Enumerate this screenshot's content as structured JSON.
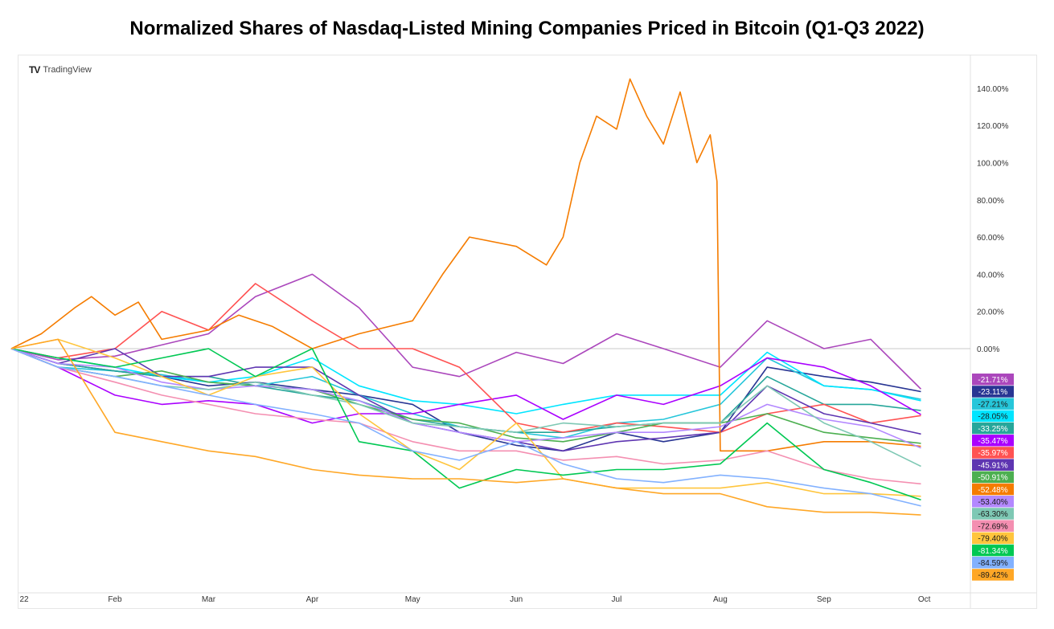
{
  "title": "Normalized Shares of Nasdaq-Listed Mining Companies Priced in Bitcoin (Q1-Q3 2022)",
  "watermark": "TradingView",
  "chart_data": {
    "type": "line",
    "title": "Normalized Shares of Nasdaq-Listed Mining Companies Priced in Bitcoin (Q1-Q3 2022)",
    "xlabel": "",
    "ylabel": "",
    "xlim": [
      "2022-01-01",
      "2022-10-20"
    ],
    "ylim": [
      -130,
      160
    ],
    "y_unit": "%",
    "y_axis_side": "right",
    "y_ticks": [
      "140.00%",
      "120.00%",
      "100.00%",
      "80.00%",
      "60.00%",
      "40.00%",
      "20.00%",
      "0.00%"
    ],
    "y_tick_values": [
      140,
      120,
      100,
      80,
      60,
      40,
      20,
      0
    ],
    "x_ticks": [
      {
        "label": "22",
        "date": "2022-01-01"
      },
      {
        "label": "Feb",
        "date": "2022-02-01"
      },
      {
        "label": "Mar",
        "date": "2022-03-01"
      },
      {
        "label": "Apr",
        "date": "2022-04-01"
      },
      {
        "label": "May",
        "date": "2022-05-01"
      },
      {
        "label": "Jun",
        "date": "2022-06-01"
      },
      {
        "label": "Jul",
        "date": "2022-07-01"
      },
      {
        "label": "Aug",
        "date": "2022-08-01"
      },
      {
        "label": "Sep",
        "date": "2022-09-01"
      },
      {
        "label": "Oct",
        "date": "2022-10-01"
      }
    ],
    "grid": false,
    "zero_line": true,
    "dates": [
      "2022-01-01",
      "2022-01-15",
      "2022-02-01",
      "2022-02-15",
      "2022-03-01",
      "2022-03-15",
      "2022-04-01",
      "2022-04-15",
      "2022-05-01",
      "2022-05-15",
      "2022-06-01",
      "2022-06-15",
      "2022-07-01",
      "2022-07-15",
      "2022-08-01",
      "2022-08-15",
      "2022-09-01",
      "2022-09-15",
      "2022-09-30"
    ],
    "series": [
      {
        "color": "#ab47bc",
        "end_label": "-21.71%",
        "values": [
          0,
          -6,
          -4,
          2,
          8,
          28,
          40,
          22,
          -10,
          -15,
          -2,
          -8,
          8,
          0,
          -10,
          15,
          0,
          5,
          -21.71
        ]
      },
      {
        "color": "#283593",
        "end_label": "-23.11%",
        "values": [
          0,
          -8,
          -12,
          -15,
          -20,
          -18,
          -22,
          -25,
          -30,
          -45,
          -52,
          -55,
          -45,
          -50,
          -45,
          -10,
          -15,
          -18,
          -23.11
        ]
      },
      {
        "color": "#26c6da",
        "end_label": "-27.21%",
        "values": [
          0,
          -10,
          -12,
          -14,
          -18,
          -20,
          -15,
          -25,
          -35,
          -42,
          -45,
          -48,
          -40,
          -38,
          -30,
          -5,
          -20,
          -22,
          -27.21
        ]
      },
      {
        "color": "#00e5ff",
        "end_label": "-28.05%",
        "values": [
          0,
          -5,
          -10,
          -15,
          -18,
          -15,
          -5,
          -20,
          -28,
          -30,
          -35,
          -30,
          -25,
          -25,
          -25,
          -2,
          -20,
          -22,
          -28.05
        ]
      },
      {
        "color": "#26a69a",
        "end_label": "-33.25%",
        "values": [
          0,
          -8,
          -12,
          -15,
          -15,
          -20,
          -25,
          -28,
          -38,
          -42,
          -45,
          -45,
          -42,
          -40,
          -40,
          -15,
          -30,
          -30,
          -33.25
        ]
      },
      {
        "color": "#aa00ff",
        "end_label": "-35.47%",
        "values": [
          0,
          -10,
          -25,
          -30,
          -28,
          -30,
          -40,
          -35,
          -35,
          -30,
          -25,
          -38,
          -25,
          -30,
          -20,
          -5,
          -10,
          -20,
          -35.47
        ]
      },
      {
        "color": "#ff5252",
        "end_label": "-35.97%",
        "values": [
          0,
          -5,
          0,
          20,
          10,
          35,
          15,
          0,
          0,
          -10,
          -40,
          -45,
          -40,
          -42,
          -45,
          -35,
          -30,
          -40,
          -35.97
        ]
      },
      {
        "color": "#5e35b1",
        "end_label": "-45.91%",
        "values": [
          0,
          -8,
          0,
          -15,
          -15,
          -10,
          -10,
          -25,
          -40,
          -45,
          -50,
          -55,
          -50,
          -48,
          -45,
          -20,
          -35,
          -40,
          -45.91
        ]
      },
      {
        "color": "#4caf50",
        "end_label": "-50.91%",
        "values": [
          0,
          -10,
          -15,
          -12,
          -18,
          -20,
          -22,
          -30,
          -38,
          -40,
          -48,
          -50,
          -45,
          -40,
          -40,
          -35,
          -45,
          -48,
          -50.91
        ]
      },
      {
        "color": "#f57c00",
        "end_label": "-52.48%",
        "points": [
          [
            "2022-01-01",
            0
          ],
          [
            "2022-01-10",
            8
          ],
          [
            "2022-01-20",
            22
          ],
          [
            "2022-01-25",
            28
          ],
          [
            "2022-02-01",
            18
          ],
          [
            "2022-02-08",
            25
          ],
          [
            "2022-02-15",
            5
          ],
          [
            "2022-03-01",
            10
          ],
          [
            "2022-03-10",
            18
          ],
          [
            "2022-03-20",
            12
          ],
          [
            "2022-04-01",
            0
          ],
          [
            "2022-04-15",
            8
          ],
          [
            "2022-05-01",
            15
          ],
          [
            "2022-05-10",
            40
          ],
          [
            "2022-05-18",
            60
          ],
          [
            "2022-06-01",
            55
          ],
          [
            "2022-06-10",
            45
          ],
          [
            "2022-06-15",
            60
          ],
          [
            "2022-06-20",
            100
          ],
          [
            "2022-06-25",
            125
          ],
          [
            "2022-07-01",
            118
          ],
          [
            "2022-07-05",
            145
          ],
          [
            "2022-07-10",
            125
          ],
          [
            "2022-07-15",
            110
          ],
          [
            "2022-07-20",
            138
          ],
          [
            "2022-07-25",
            100
          ],
          [
            "2022-07-29",
            115
          ],
          [
            "2022-07-31",
            90
          ],
          [
            "2022-08-01",
            -55
          ],
          [
            "2022-08-15",
            -55
          ],
          [
            "2022-09-01",
            -50
          ],
          [
            "2022-09-15",
            -50
          ],
          [
            "2022-09-30",
            -52.48
          ]
        ]
      },
      {
        "color": "#b388ff",
        "end_label": "-53.40%",
        "values": [
          0,
          -8,
          -10,
          -18,
          -22,
          -20,
          -22,
          -28,
          -40,
          -45,
          -50,
          -48,
          -45,
          -45,
          -42,
          -30,
          -38,
          -42,
          -53.4
        ]
      },
      {
        "color": "#7ec8b4",
        "end_label": "-63.30%",
        "values": [
          0,
          -10,
          -15,
          -20,
          -22,
          -18,
          -25,
          -30,
          -40,
          -42,
          -45,
          -40,
          -42,
          -40,
          -40,
          -20,
          -40,
          -50,
          -63.3
        ]
      },
      {
        "color": "#f48fb1",
        "end_label": "-72.69%",
        "values": [
          0,
          -10,
          -18,
          -25,
          -30,
          -35,
          -38,
          -40,
          -50,
          -55,
          -55,
          -60,
          -58,
          -62,
          -60,
          -55,
          -65,
          -70,
          -72.69
        ]
      },
      {
        "color": "#ffc53d",
        "end_label": "-79.40%",
        "values": [
          0,
          5,
          -5,
          -15,
          -25,
          -15,
          -10,
          -35,
          -55,
          -65,
          -40,
          -70,
          -75,
          -75,
          -75,
          -72,
          -78,
          -78,
          -79.4
        ]
      },
      {
        "color": "#00c853",
        "end_label": "-81.34%",
        "values": [
          0,
          -5,
          -10,
          -5,
          0,
          -15,
          0,
          -50,
          -55,
          -75,
          -65,
          -68,
          -65,
          -65,
          -62,
          -40,
          -65,
          -72,
          -81.34
        ]
      },
      {
        "color": "#82b1ff",
        "end_label": "-84.59%",
        "values": [
          0,
          -10,
          -15,
          -20,
          -25,
          -30,
          -35,
          -40,
          -55,
          -60,
          -50,
          -62,
          -70,
          -72,
          -68,
          -70,
          -75,
          -78,
          -84.59
        ]
      },
      {
        "color": "#ffa726",
        "end_label": "-89.42%",
        "values": [
          0,
          5,
          -45,
          -50,
          -55,
          -58,
          -65,
          -68,
          -70,
          -70,
          -72,
          -70,
          -75,
          -78,
          -78,
          -85,
          -88,
          -88,
          -89.42
        ]
      }
    ]
  }
}
